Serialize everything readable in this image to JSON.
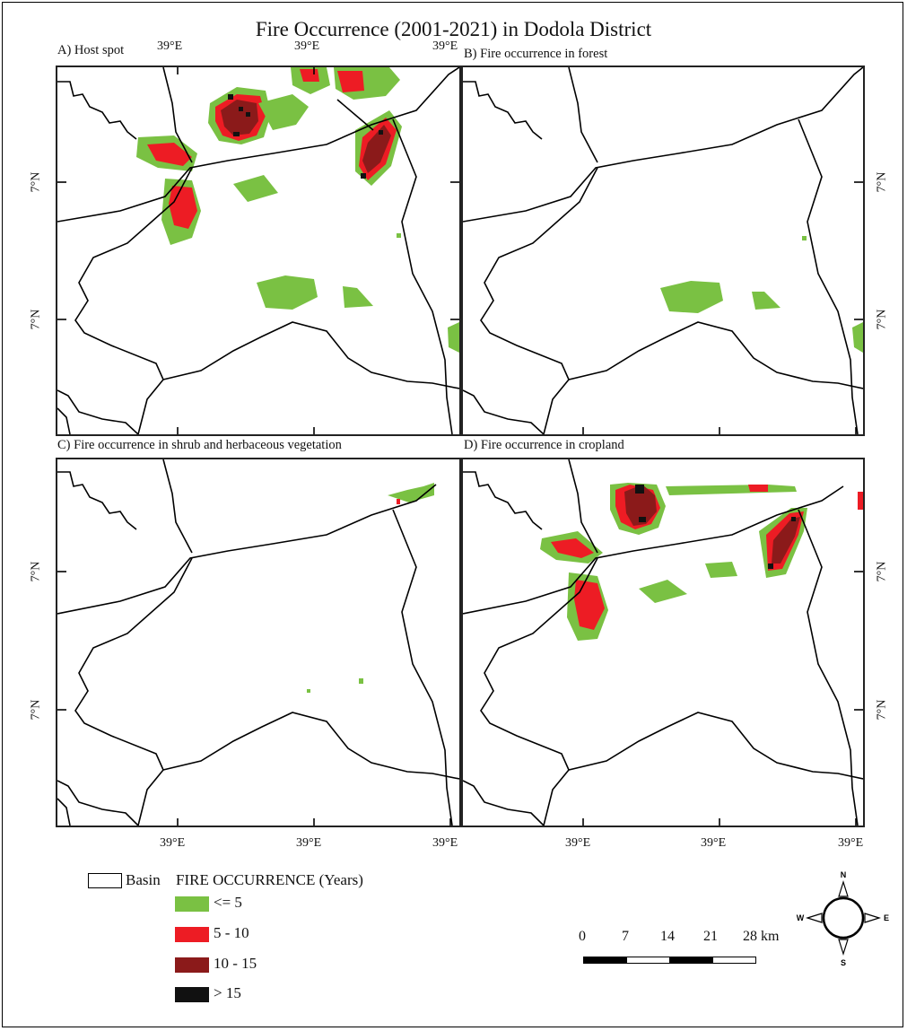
{
  "title": "Fire Occurrence (2001-2021) in  Dodola District",
  "panels": [
    {
      "id": "A",
      "label": "A) Host spot"
    },
    {
      "id": "B",
      "label": "B) Fire occurrence in forest"
    },
    {
      "id": "C",
      "label": "C) Fire occurrence in shrub and herbaceous vegetation"
    },
    {
      "id": "D",
      "label": "D) Fire occurrence in cropland"
    }
  ],
  "ticks": {
    "lon": [
      "39°E",
      "39°E",
      "39°E"
    ],
    "lat": [
      "7°N",
      "7°N"
    ]
  },
  "legend": {
    "basin_label": "Basin",
    "title": "FIRE OCCURRENCE (Years)",
    "classes": [
      {
        "label": "<= 5",
        "color": "#7ac143"
      },
      {
        "label": "5 - 10",
        "color": "#ed1c24"
      },
      {
        "label": "10 - 15",
        "color": "#8b1a1a"
      },
      {
        "label": "> 15",
        "color": "#111111"
      }
    ]
  },
  "scale_bar": {
    "labels": [
      "0",
      "7",
      "14",
      "21",
      "28 km"
    ]
  },
  "compass": {
    "n": "N",
    "s": "S",
    "e": "E",
    "w": "W"
  },
  "colors": {
    "boundary": "#000000",
    "frame": "#222222"
  }
}
